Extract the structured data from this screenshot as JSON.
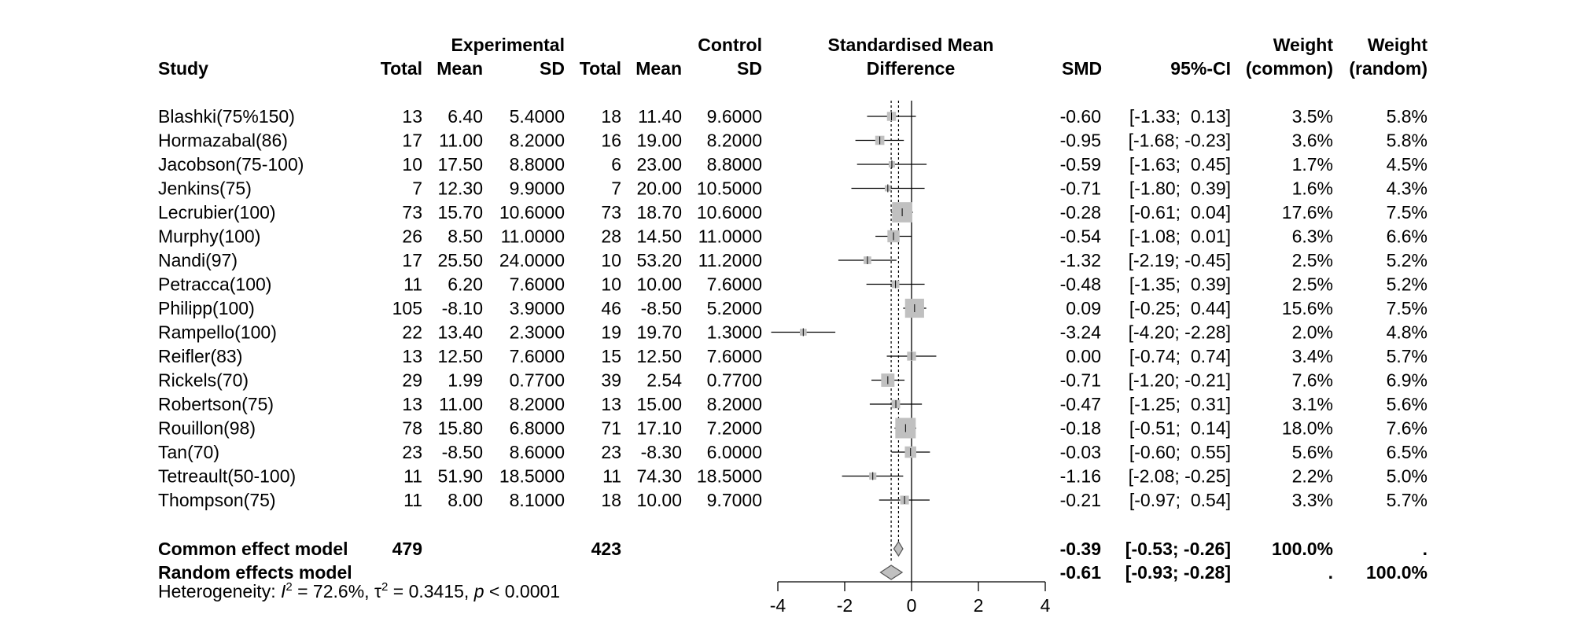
{
  "chart_data": {
    "type": "forest",
    "title": "",
    "headers": {
      "group_experimental": "Experimental",
      "group_control": "Control",
      "study": "Study",
      "total": "Total",
      "mean": "Mean",
      "sd": "SD",
      "effect_line1": "Standardised Mean",
      "effect_line2": "Difference",
      "smd": "SMD",
      "ci": "95%-CI",
      "weight": "Weight",
      "weight_common": "(common)",
      "weight_random": "(random)"
    },
    "studies": [
      {
        "study": "Blashki(75%150)",
        "e_total": "13",
        "e_mean": "6.40",
        "e_sd": "5.4000",
        "c_total": "18",
        "c_mean": "11.40",
        "c_sd": "9.6000",
        "smd": -0.6,
        "lower": -1.33,
        "upper": 0.13,
        "smd_label": "-0.60",
        "ci_label": "[-1.33;  0.13]",
        "w_common": 3.5,
        "w_common_label": "3.5%",
        "w_random_label": "5.8%"
      },
      {
        "study": "Hormazabal(86)",
        "e_total": "17",
        "e_mean": "11.00",
        "e_sd": "8.2000",
        "c_total": "16",
        "c_mean": "19.00",
        "c_sd": "8.2000",
        "smd": -0.95,
        "lower": -1.68,
        "upper": -0.23,
        "smd_label": "-0.95",
        "ci_label": "[-1.68; -0.23]",
        "w_common": 3.6,
        "w_common_label": "3.6%",
        "w_random_label": "5.8%"
      },
      {
        "study": "Jacobson(75-100)",
        "e_total": "10",
        "e_mean": "17.50",
        "e_sd": "8.8000",
        "c_total": "6",
        "c_mean": "23.00",
        "c_sd": "8.8000",
        "smd": -0.59,
        "lower": -1.63,
        "upper": 0.45,
        "smd_label": "-0.59",
        "ci_label": "[-1.63;  0.45]",
        "w_common": 1.7,
        "w_common_label": "1.7%",
        "w_random_label": "4.5%"
      },
      {
        "study": "Jenkins(75)",
        "e_total": "7",
        "e_mean": "12.30",
        "e_sd": "9.9000",
        "c_total": "7",
        "c_mean": "20.00",
        "c_sd": "10.5000",
        "smd": -0.71,
        "lower": -1.8,
        "upper": 0.39,
        "smd_label": "-0.71",
        "ci_label": "[-1.80;  0.39]",
        "w_common": 1.6,
        "w_common_label": "1.6%",
        "w_random_label": "4.3%"
      },
      {
        "study": "Lecrubier(100)",
        "e_total": "73",
        "e_mean": "15.70",
        "e_sd": "10.6000",
        "c_total": "73",
        "c_mean": "18.70",
        "c_sd": "10.6000",
        "smd": -0.28,
        "lower": -0.61,
        "upper": 0.04,
        "smd_label": "-0.28",
        "ci_label": "[-0.61;  0.04]",
        "w_common": 17.6,
        "w_common_label": "17.6%",
        "w_random_label": "7.5%"
      },
      {
        "study": "Murphy(100)",
        "e_total": "26",
        "e_mean": "8.50",
        "e_sd": "11.0000",
        "c_total": "28",
        "c_mean": "14.50",
        "c_sd": "11.0000",
        "smd": -0.54,
        "lower": -1.08,
        "upper": 0.01,
        "smd_label": "-0.54",
        "ci_label": "[-1.08;  0.01]",
        "w_common": 6.3,
        "w_common_label": "6.3%",
        "w_random_label": "6.6%"
      },
      {
        "study": "Nandi(97)",
        "e_total": "17",
        "e_mean": "25.50",
        "e_sd": "24.0000",
        "c_total": "10",
        "c_mean": "53.20",
        "c_sd": "11.2000",
        "smd": -1.32,
        "lower": -2.19,
        "upper": -0.45,
        "smd_label": "-1.32",
        "ci_label": "[-2.19; -0.45]",
        "w_common": 2.5,
        "w_common_label": "2.5%",
        "w_random_label": "5.2%"
      },
      {
        "study": "Petracca(100)",
        "e_total": "11",
        "e_mean": "6.20",
        "e_sd": "7.6000",
        "c_total": "10",
        "c_mean": "10.00",
        "c_sd": "7.6000",
        "smd": -0.48,
        "lower": -1.35,
        "upper": 0.39,
        "smd_label": "-0.48",
        "ci_label": "[-1.35;  0.39]",
        "w_common": 2.5,
        "w_common_label": "2.5%",
        "w_random_label": "5.2%"
      },
      {
        "study": "Philipp(100)",
        "e_total": "105",
        "e_mean": "-8.10",
        "e_sd": "3.9000",
        "c_total": "46",
        "c_mean": "-8.50",
        "c_sd": "5.2000",
        "smd": 0.09,
        "lower": -0.25,
        "upper": 0.44,
        "smd_label": "0.09",
        "ci_label": "[-0.25;  0.44]",
        "w_common": 15.6,
        "w_common_label": "15.6%",
        "w_random_label": "7.5%"
      },
      {
        "study": "Rampello(100)",
        "e_total": "22",
        "e_mean": "13.40",
        "e_sd": "2.3000",
        "c_total": "19",
        "c_mean": "19.70",
        "c_sd": "1.3000",
        "smd": -3.24,
        "lower": -4.2,
        "upper": -2.28,
        "smd_label": "-3.24",
        "ci_label": "[-4.20; -2.28]",
        "w_common": 2.0,
        "w_common_label": "2.0%",
        "w_random_label": "4.8%"
      },
      {
        "study": "Reifler(83)",
        "e_total": "13",
        "e_mean": "12.50",
        "e_sd": "7.6000",
        "c_total": "15",
        "c_mean": "12.50",
        "c_sd": "7.6000",
        "smd": 0.0,
        "lower": -0.74,
        "upper": 0.74,
        "smd_label": "0.00",
        "ci_label": "[-0.74;  0.74]",
        "w_common": 3.4,
        "w_common_label": "3.4%",
        "w_random_label": "5.7%"
      },
      {
        "study": "Rickels(70)",
        "e_total": "29",
        "e_mean": "1.99",
        "e_sd": "0.7700",
        "c_total": "39",
        "c_mean": "2.54",
        "c_sd": "0.7700",
        "smd": -0.71,
        "lower": -1.2,
        "upper": -0.21,
        "smd_label": "-0.71",
        "ci_label": "[-1.20; -0.21]",
        "w_common": 7.6,
        "w_common_label": "7.6%",
        "w_random_label": "6.9%"
      },
      {
        "study": "Robertson(75)",
        "e_total": "13",
        "e_mean": "11.00",
        "e_sd": "8.2000",
        "c_total": "13",
        "c_mean": "15.00",
        "c_sd": "8.2000",
        "smd": -0.47,
        "lower": -1.25,
        "upper": 0.31,
        "smd_label": "-0.47",
        "ci_label": "[-1.25;  0.31]",
        "w_common": 3.1,
        "w_common_label": "3.1%",
        "w_random_label": "5.6%"
      },
      {
        "study": "Rouillon(98)",
        "e_total": "78",
        "e_mean": "15.80",
        "e_sd": "6.8000",
        "c_total": "71",
        "c_mean": "17.10",
        "c_sd": "7.2000",
        "smd": -0.18,
        "lower": -0.51,
        "upper": 0.14,
        "smd_label": "-0.18",
        "ci_label": "[-0.51;  0.14]",
        "w_common": 18.0,
        "w_common_label": "18.0%",
        "w_random_label": "7.6%"
      },
      {
        "study": "Tan(70)",
        "e_total": "23",
        "e_mean": "-8.50",
        "e_sd": "8.6000",
        "c_total": "23",
        "c_mean": "-8.30",
        "c_sd": "6.0000",
        "smd": -0.03,
        "lower": -0.6,
        "upper": 0.55,
        "smd_label": "-0.03",
        "ci_label": "[-0.60;  0.55]",
        "w_common": 5.6,
        "w_common_label": "5.6%",
        "w_random_label": "6.5%"
      },
      {
        "study": "Tetreault(50-100)",
        "e_total": "11",
        "e_mean": "51.90",
        "e_sd": "18.5000",
        "c_total": "11",
        "c_mean": "74.30",
        "c_sd": "18.5000",
        "smd": -1.16,
        "lower": -2.08,
        "upper": -0.25,
        "smd_label": "-1.16",
        "ci_label": "[-2.08; -0.25]",
        "w_common": 2.2,
        "w_common_label": "2.2%",
        "w_random_label": "5.0%"
      },
      {
        "study": "Thompson(75)",
        "e_total": "11",
        "e_mean": "8.00",
        "e_sd": "8.1000",
        "c_total": "18",
        "c_mean": "10.00",
        "c_sd": "9.7000",
        "smd": -0.21,
        "lower": -0.97,
        "upper": 0.54,
        "smd_label": "-0.21",
        "ci_label": "[-0.97;  0.54]",
        "w_common": 3.3,
        "w_common_label": "3.3%",
        "w_random_label": "5.7%"
      }
    ],
    "common": {
      "label": "Common effect model",
      "e_total": "479",
      "c_total": "423",
      "smd": -0.39,
      "lower": -0.53,
      "upper": -0.26,
      "smd_label": "-0.39",
      "ci_label": "[-0.53; -0.26]",
      "w_common_label": "100.0%",
      "w_random_label": "."
    },
    "random": {
      "label": "Random effects model",
      "smd": -0.61,
      "lower": -0.93,
      "upper": -0.28,
      "smd_label": "-0.61",
      "ci_label": "[-0.93; -0.28]",
      "w_common_label": ".",
      "w_random_label": "100.0%"
    },
    "heterogeneity": {
      "prefix": "Heterogeneity: ",
      "i2_symbol": "I",
      "i2_value": " = 72.6%, ",
      "tau2_symbol": "τ",
      "tau2_value": " = 0.3415, ",
      "p_symbol": "p",
      "p_value": " < 0.0001",
      "superscript": "2"
    },
    "xaxis": {
      "ticks": [
        -4,
        -2,
        0,
        2,
        4
      ],
      "tick_labels": [
        "-4",
        "-2",
        "0",
        "2",
        "4"
      ],
      "xlim": [
        -4,
        4
      ]
    },
    "colors": {
      "box": "#c0c0c0",
      "diamond": "#c0c0c0",
      "line": "#000000"
    }
  }
}
